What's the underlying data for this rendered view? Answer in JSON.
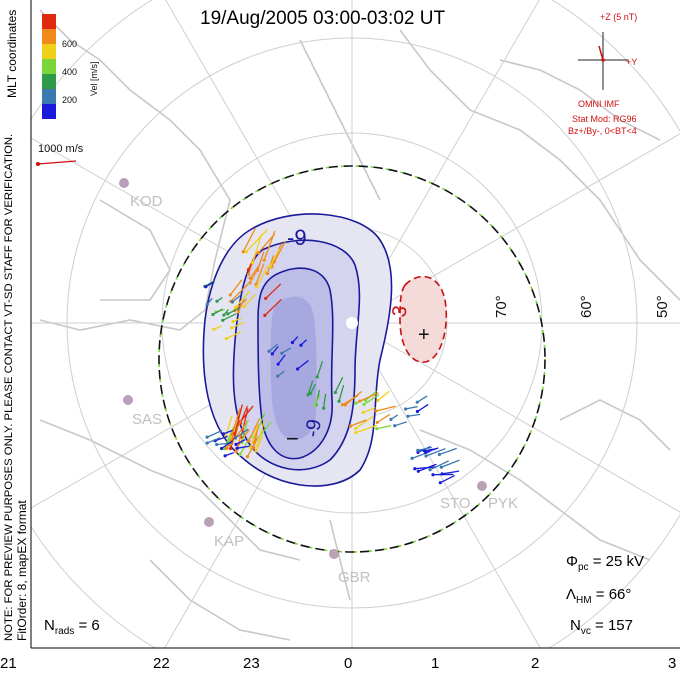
{
  "title": "19/Aug/2005 03:00-03:02 UT",
  "left_notes": {
    "mlt": "MLT coordinates",
    "verification": "NOTE: FOR PREVIEW PURPOSES ONLY. PLEASE CONTACT VT-SD STAFF FOR VERIFICATION.",
    "fitorder": "FitOrder: 8, mapEX format"
  },
  "colorbar": {
    "label": "Vel [m/s]",
    "ticks": [
      "200",
      "400",
      "600"
    ],
    "colors": [
      "#1a1adc",
      "#3a7ab0",
      "#2e9a4a",
      "#7bd63a",
      "#f0d01a",
      "#f08a1a",
      "#e02a10"
    ]
  },
  "vector_scale": {
    "label": "1000 m/s",
    "color": "#d01010"
  },
  "imf": {
    "z_label": "+Z (5 nT)",
    "y_label": "+Y",
    "source": "OMNI IMF",
    "stat_mod": "Stat Mod: RG96",
    "condition": "Bz+/By-, 0<BT<4",
    "color": "#d01010"
  },
  "stations": [
    "KOD",
    "SAS",
    "KAP",
    "GBR",
    "STO",
    "PYK"
  ],
  "latitudes": [
    "70°",
    "60°",
    "50°"
  ],
  "contours": {
    "neg_labels": [
      "-9",
      "-9",
      "−"
    ],
    "pos_labels": [
      "3",
      "+"
    ],
    "neg_color": "#1a1a9a",
    "pos_color": "#c81010"
  },
  "stats": {
    "phi_sym": "Φ",
    "phi_sub": "pc",
    "phi_val": " = 25 kV",
    "lambda_sym": "Λ",
    "lambda_sub": "HM",
    "lambda_val": " = 66°",
    "nvc_sym": "N",
    "nvc_sub": "vc",
    "nvc_val": " = 157",
    "nrads_sym": "N",
    "nrads_sub": "rads",
    "nrads_val": " = 6"
  },
  "mlt_ticks": [
    "21",
    "22",
    "23",
    "0",
    "1",
    "2",
    "3"
  ],
  "chart_data": {
    "type": "map",
    "title": "19/Aug/2005 03:00-03:02 UT",
    "potential_kV": 25,
    "heppner_maynard_boundary_deg": 66,
    "n_vectors": 157,
    "n_radars": 6,
    "mlt_axis": [
      "21",
      "22",
      "23",
      "0",
      "1",
      "2",
      "3"
    ],
    "latitude_circles_deg": [
      70,
      60,
      50
    ],
    "contour_labels": [
      "-9",
      "3"
    ]
  }
}
